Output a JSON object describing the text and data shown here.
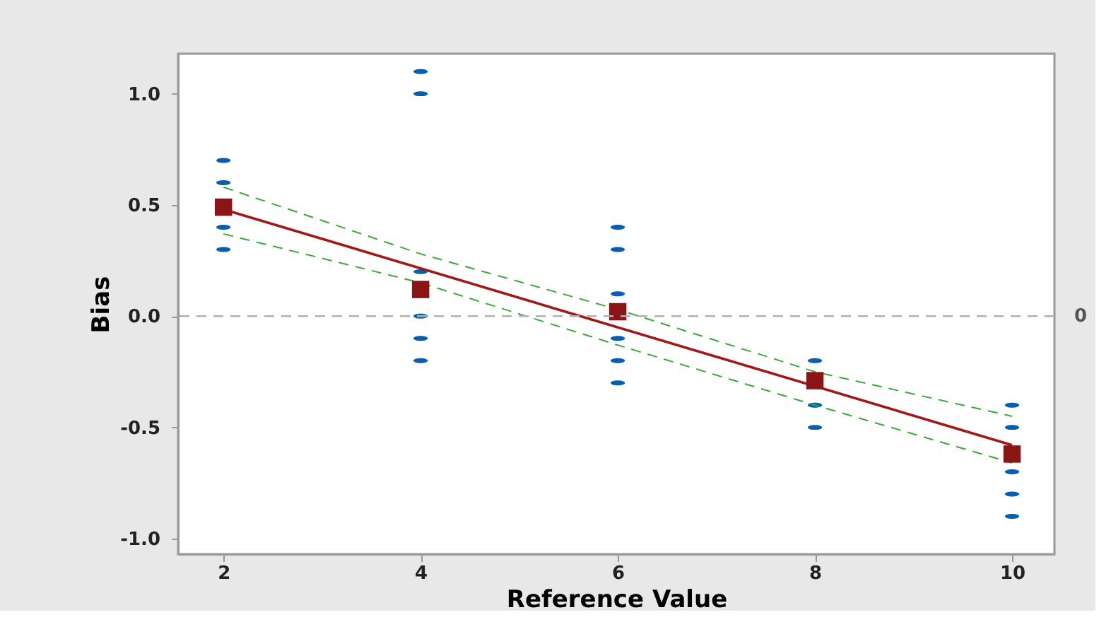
{
  "chart_data": {
    "type": "scatter",
    "xlabel": "Reference Value",
    "ylabel": "Bias",
    "xlim": [
      1.54,
      10.43
    ],
    "xticks": [
      2,
      4,
      6,
      8,
      10
    ],
    "ylim": [
      -1.07,
      1.18
    ],
    "yticks": [
      {
        "value": -1.0,
        "label": "-1.0"
      },
      {
        "value": -0.5,
        "label": "-0.5"
      },
      {
        "value": 0.0,
        "label": "0.0"
      },
      {
        "value": 0.5,
        "label": "0.5"
      },
      {
        "value": 1.0,
        "label": "1.0"
      }
    ],
    "grid": false,
    "series": [
      {
        "marker": "circle",
        "color": "#0a5eb0",
        "x": [
          2,
          2,
          2,
          2,
          4,
          4,
          4,
          4,
          4,
          4,
          6,
          6,
          6,
          6,
          6,
          6,
          8,
          8,
          8,
          10,
          10,
          10,
          10,
          10
        ],
        "values": [
          0.7,
          0.6,
          0.4,
          0.3,
          1.1,
          1.0,
          0.2,
          0.0,
          -0.1,
          -0.2,
          0.4,
          0.3,
          0.1,
          -0.1,
          -0.2,
          -0.3,
          -0.2,
          -0.4,
          -0.5,
          -0.4,
          -0.5,
          -0.7,
          -0.8,
          -0.9
        ]
      },
      {
        "type": "line",
        "line_style": "dashed",
        "marker": "none",
        "color": "#3aaa3a",
        "x": [
          2,
          4,
          6,
          8,
          10
        ],
        "values": [
          0.58,
          0.28,
          0.03,
          -0.25,
          -0.45
        ]
      },
      {
        "type": "line",
        "line_style": "dashed",
        "marker": "none",
        "color": "#3aaa3a",
        "x": [
          2,
          4,
          6,
          8,
          10
        ],
        "values": [
          0.37,
          0.15,
          -0.13,
          -0.4,
          -0.66
        ]
      },
      {
        "type": "line",
        "line_style": "solid",
        "marker": "none",
        "color": "#a01818",
        "x": [
          2,
          10
        ],
        "values": [
          0.48,
          -0.58
        ]
      },
      {
        "marker": "square",
        "color": "#8b1414",
        "x": [
          2,
          4,
          6,
          8,
          10
        ],
        "values": [
          0.49,
          0.12,
          0.02,
          -0.29,
          -0.62
        ]
      }
    ],
    "ref_lines": [
      {
        "axis": "y",
        "value": 0,
        "label": "0",
        "color": "#b0b0b0",
        "line_style": "dashed"
      }
    ]
  }
}
